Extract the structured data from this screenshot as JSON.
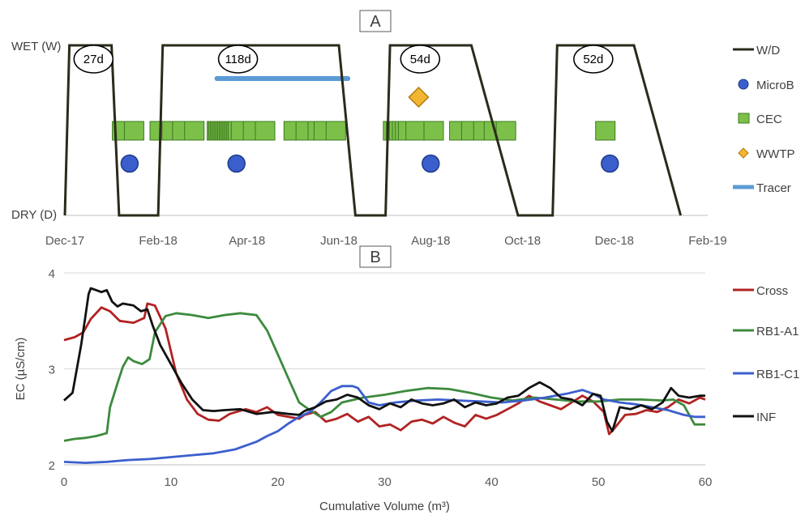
{
  "chart_data": [
    {
      "panel": "A",
      "type": "timeline",
      "y_categories": [
        "WET (W)",
        "DRY (D)"
      ],
      "x_tick_labels": [
        "Dec-17",
        "Feb-18",
        "Apr-18",
        "Jun-18",
        "Aug-18",
        "Oct-18",
        "Dec-18",
        "Feb-19"
      ],
      "x_ticks": [
        "2017-12-01",
        "2018-02-01",
        "2018-04-01",
        "2018-06-01",
        "2018-08-01",
        "2018-10-01",
        "2018-12-01",
        "2019-02-01"
      ],
      "xlim": [
        "2017-12-01",
        "2019-02-01"
      ],
      "legend": [
        "W/D",
        "MicroB",
        "CEC",
        "WWTP",
        "Tracer"
      ],
      "colors": {
        "wd": "#2b2b1b",
        "microb": "#3a5fcd",
        "microb_edge": "#1f3a8a",
        "cec": "#7cc04a",
        "cec_edge": "#3d7a1e",
        "wwtp": "#f2b632",
        "wwtp_edge": "#b07d0c",
        "tracer": "#5b9bd5"
      },
      "wd_series": [
        [
          "2017-12-01",
          "D"
        ],
        [
          "2017-12-04",
          "W"
        ],
        [
          "2018-01-01",
          "W"
        ],
        [
          "2018-01-06",
          "D"
        ],
        [
          "2018-02-01",
          "D"
        ],
        [
          "2018-02-04",
          "W"
        ],
        [
          "2018-06-01",
          "W"
        ],
        [
          "2018-06-12",
          "D"
        ],
        [
          "2018-07-02",
          "D"
        ],
        [
          "2018-07-05",
          "W"
        ],
        [
          "2018-08-28",
          "W"
        ],
        [
          "2018-09-28",
          "D"
        ],
        [
          "2018-10-21",
          "D"
        ],
        [
          "2018-10-24",
          "W"
        ],
        [
          "2018-12-14",
          "W"
        ],
        [
          "2019-01-14",
          "D"
        ]
      ],
      "durations": [
        {
          "label": "27d",
          "date": "2017-12-20"
        },
        {
          "label": "118d",
          "date": "2018-03-26"
        },
        {
          "label": "54d",
          "date": "2018-07-25"
        },
        {
          "label": "52d",
          "date": "2018-11-17"
        }
      ],
      "microb": [
        "2018-01-13",
        "2018-03-25",
        "2018-08-01",
        "2018-11-28"
      ],
      "cec": [
        "2018-01-08",
        "2018-01-16",
        "2018-02-02",
        "2018-02-10",
        "2018-02-17",
        "2018-02-25",
        "2018-03-12",
        "2018-03-13",
        "2018-03-14",
        "2018-03-15",
        "2018-03-16",
        "2018-03-17",
        "2018-03-18",
        "2018-03-19",
        "2018-03-20",
        "2018-03-21",
        "2018-03-22",
        "2018-03-23",
        "2018-03-24",
        "2018-03-25",
        "2018-03-26",
        "2018-03-28",
        "2018-04-05",
        "2018-04-13",
        "2018-05-02",
        "2018-05-10",
        "2018-05-18",
        "2018-05-22",
        "2018-05-30",
        "2018-07-07",
        "2018-07-09",
        "2018-07-11",
        "2018-07-13",
        "2018-07-15",
        "2018-07-17",
        "2018-07-22",
        "2018-08-03",
        "2018-08-20",
        "2018-08-28",
        "2018-09-05",
        "2018-09-12",
        "2018-09-20",
        "2018-11-25"
      ],
      "wwtp": [
        "2018-07-24"
      ],
      "tracer": {
        "start": "2018-03-12",
        "end": "2018-06-07"
      }
    },
    {
      "panel": "B",
      "type": "line",
      "xlabel": "Cumulative Volume (m³)",
      "ylabel": "EC (µS/cm)",
      "xlim": [
        0,
        60
      ],
      "ylim": [
        2,
        4
      ],
      "x_ticks": [
        0,
        10,
        20,
        30,
        40,
        50,
        60
      ],
      "y_ticks": [
        2,
        3,
        4
      ],
      "series": [
        {
          "name": "Cross",
          "color": "#b22222",
          "points": [
            [
              0,
              3.3
            ],
            [
              1,
              3.33
            ],
            [
              1.8,
              3.38
            ],
            [
              2.5,
              3.52
            ],
            [
              3.5,
              3.64
            ],
            [
              4.3,
              3.6
            ],
            [
              5.2,
              3.5
            ],
            [
              6.5,
              3.48
            ],
            [
              7.5,
              3.53
            ],
            [
              7.8,
              3.68
            ],
            [
              8.5,
              3.66
            ],
            [
              9.5,
              3.42
            ],
            [
              10.5,
              2.95
            ],
            [
              11.5,
              2.68
            ],
            [
              12.5,
              2.53
            ],
            [
              13.5,
              2.47
            ],
            [
              14.5,
              2.46
            ],
            [
              15.5,
              2.53
            ],
            [
              17,
              2.58
            ],
            [
              18,
              2.55
            ],
            [
              19,
              2.6
            ],
            [
              20,
              2.52
            ],
            [
              21,
              2.5
            ],
            [
              22,
              2.48
            ],
            [
              22.5,
              2.52
            ],
            [
              23.5,
              2.55
            ],
            [
              24.5,
              2.45
            ],
            [
              25.5,
              2.48
            ],
            [
              26.5,
              2.53
            ],
            [
              27.5,
              2.45
            ],
            [
              28.5,
              2.5
            ],
            [
              29.5,
              2.4
            ],
            [
              30.5,
              2.42
            ],
            [
              31.5,
              2.36
            ],
            [
              32.5,
              2.45
            ],
            [
              33.5,
              2.47
            ],
            [
              34.5,
              2.43
            ],
            [
              35.5,
              2.5
            ],
            [
              36.5,
              2.44
            ],
            [
              37.5,
              2.4
            ],
            [
              38.5,
              2.52
            ],
            [
              39.5,
              2.48
            ],
            [
              40.5,
              2.52
            ],
            [
              41.5,
              2.58
            ],
            [
              42.5,
              2.64
            ],
            [
              43.5,
              2.72
            ],
            [
              44.5,
              2.66
            ],
            [
              45.5,
              2.62
            ],
            [
              46.5,
              2.58
            ],
            [
              47.5,
              2.65
            ],
            [
              48.5,
              2.72
            ],
            [
              49.5,
              2.66
            ],
            [
              50.5,
              2.55
            ],
            [
              51,
              2.32
            ],
            [
              51.5,
              2.38
            ],
            [
              52.5,
              2.52
            ],
            [
              53.5,
              2.53
            ],
            [
              54.5,
              2.57
            ],
            [
              55.5,
              2.55
            ],
            [
              56.5,
              2.6
            ],
            [
              57.5,
              2.68
            ],
            [
              58.5,
              2.64
            ],
            [
              59.5,
              2.7
            ],
            [
              60,
              2.68
            ]
          ]
        },
        {
          "name": "RB1-A1",
          "color": "#3d8a3d",
          "points": [
            [
              0,
              2.25
            ],
            [
              1,
              2.27
            ],
            [
              2,
              2.28
            ],
            [
              3,
              2.3
            ],
            [
              4,
              2.33
            ],
            [
              4.3,
              2.6
            ],
            [
              5,
              2.85
            ],
            [
              5.5,
              3.02
            ],
            [
              6,
              3.12
            ],
            [
              6.5,
              3.08
            ],
            [
              7.3,
              3.05
            ],
            [
              8,
              3.1
            ],
            [
              8.5,
              3.38
            ],
            [
              9.5,
              3.55
            ],
            [
              10.5,
              3.58
            ],
            [
              12,
              3.56
            ],
            [
              13.5,
              3.53
            ],
            [
              15,
              3.56
            ],
            [
              16.5,
              3.58
            ],
            [
              18,
              3.56
            ],
            [
              19,
              3.4
            ],
            [
              20,
              3.15
            ],
            [
              21,
              2.9
            ],
            [
              22,
              2.65
            ],
            [
              23,
              2.57
            ],
            [
              24,
              2.5
            ],
            [
              25,
              2.55
            ],
            [
              26,
              2.65
            ],
            [
              28,
              2.7
            ],
            [
              30,
              2.73
            ],
            [
              32,
              2.77
            ],
            [
              34,
              2.8
            ],
            [
              36,
              2.79
            ],
            [
              38,
              2.75
            ],
            [
              40,
              2.7
            ],
            [
              42,
              2.67
            ],
            [
              44,
              2.7
            ],
            [
              46,
              2.68
            ],
            [
              48,
              2.66
            ],
            [
              50,
              2.66
            ],
            [
              52,
              2.68
            ],
            [
              54,
              2.68
            ],
            [
              56,
              2.67
            ],
            [
              57,
              2.68
            ],
            [
              58,
              2.62
            ],
            [
              59,
              2.42
            ],
            [
              60,
              2.42
            ]
          ]
        },
        {
          "name": "RB1-C1",
          "color": "#3b5fcd",
          "points": [
            [
              0,
              2.03
            ],
            [
              2,
              2.02
            ],
            [
              4,
              2.03
            ],
            [
              6,
              2.05
            ],
            [
              8,
              2.06
            ],
            [
              10,
              2.08
            ],
            [
              12,
              2.1
            ],
            [
              14,
              2.12
            ],
            [
              16,
              2.16
            ],
            [
              18,
              2.24
            ],
            [
              19,
              2.3
            ],
            [
              20,
              2.35
            ],
            [
              21,
              2.43
            ],
            [
              22,
              2.5
            ],
            [
              23,
              2.55
            ],
            [
              24,
              2.65
            ],
            [
              25,
              2.77
            ],
            [
              26,
              2.82
            ],
            [
              27,
              2.82
            ],
            [
              27.5,
              2.8
            ],
            [
              28.5,
              2.65
            ],
            [
              29.5,
              2.62
            ],
            [
              31,
              2.65
            ],
            [
              33,
              2.67
            ],
            [
              35,
              2.68
            ],
            [
              37,
              2.67
            ],
            [
              39,
              2.66
            ],
            [
              41,
              2.65
            ],
            [
              43,
              2.67
            ],
            [
              45,
              2.7
            ],
            [
              47,
              2.74
            ],
            [
              48.5,
              2.78
            ],
            [
              49.5,
              2.74
            ],
            [
              50.5,
              2.68
            ],
            [
              52,
              2.65
            ],
            [
              53.5,
              2.63
            ],
            [
              55,
              2.6
            ],
            [
              56.5,
              2.57
            ],
            [
              58,
              2.52
            ],
            [
              59,
              2.5
            ],
            [
              60,
              2.5
            ]
          ]
        },
        {
          "name": "INF",
          "color": "#111111",
          "points": [
            [
              0,
              2.67
            ],
            [
              0.8,
              2.75
            ],
            [
              1.2,
              3.0
            ],
            [
              1.6,
              3.25
            ],
            [
              2,
              3.55
            ],
            [
              2.3,
              3.78
            ],
            [
              2.5,
              3.84
            ],
            [
              3,
              3.82
            ],
            [
              3.5,
              3.8
            ],
            [
              4,
              3.82
            ],
            [
              4.5,
              3.7
            ],
            [
              5,
              3.65
            ],
            [
              5.5,
              3.68
            ],
            [
              6.5,
              3.66
            ],
            [
              7.2,
              3.6
            ],
            [
              7.8,
              3.62
            ],
            [
              8.3,
              3.45
            ],
            [
              9,
              3.25
            ],
            [
              10,
              3.05
            ],
            [
              11,
              2.85
            ],
            [
              12,
              2.68
            ],
            [
              13,
              2.57
            ],
            [
              14,
              2.56
            ],
            [
              15,
              2.57
            ],
            [
              16.5,
              2.58
            ],
            [
              18,
              2.53
            ],
            [
              19.5,
              2.55
            ],
            [
              21,
              2.53
            ],
            [
              22,
              2.52
            ],
            [
              22.5,
              2.56
            ],
            [
              23.5,
              2.6
            ],
            [
              24.5,
              2.66
            ],
            [
              25.5,
              2.68
            ],
            [
              26.5,
              2.73
            ],
            [
              27.5,
              2.7
            ],
            [
              28.5,
              2.62
            ],
            [
              29.5,
              2.58
            ],
            [
              30.5,
              2.64
            ],
            [
              31.5,
              2.6
            ],
            [
              32.5,
              2.68
            ],
            [
              33.5,
              2.64
            ],
            [
              34.5,
              2.62
            ],
            [
              35.5,
              2.64
            ],
            [
              36.5,
              2.68
            ],
            [
              37.5,
              2.6
            ],
            [
              38.5,
              2.65
            ],
            [
              39.5,
              2.62
            ],
            [
              40.5,
              2.64
            ],
            [
              41.5,
              2.7
            ],
            [
              42.5,
              2.72
            ],
            [
              43.5,
              2.8
            ],
            [
              44.5,
              2.86
            ],
            [
              45.5,
              2.8
            ],
            [
              46.5,
              2.7
            ],
            [
              47.5,
              2.68
            ],
            [
              48.5,
              2.62
            ],
            [
              49.5,
              2.74
            ],
            [
              50.2,
              2.72
            ],
            [
              50.8,
              2.45
            ],
            [
              51.3,
              2.35
            ],
            [
              52,
              2.6
            ],
            [
              53,
              2.58
            ],
            [
              54,
              2.62
            ],
            [
              55,
              2.58
            ],
            [
              56,
              2.65
            ],
            [
              56.8,
              2.8
            ],
            [
              57.5,
              2.72
            ],
            [
              58.5,
              2.7
            ],
            [
              59.5,
              2.72
            ],
            [
              60,
              2.72
            ]
          ]
        }
      ]
    }
  ]
}
